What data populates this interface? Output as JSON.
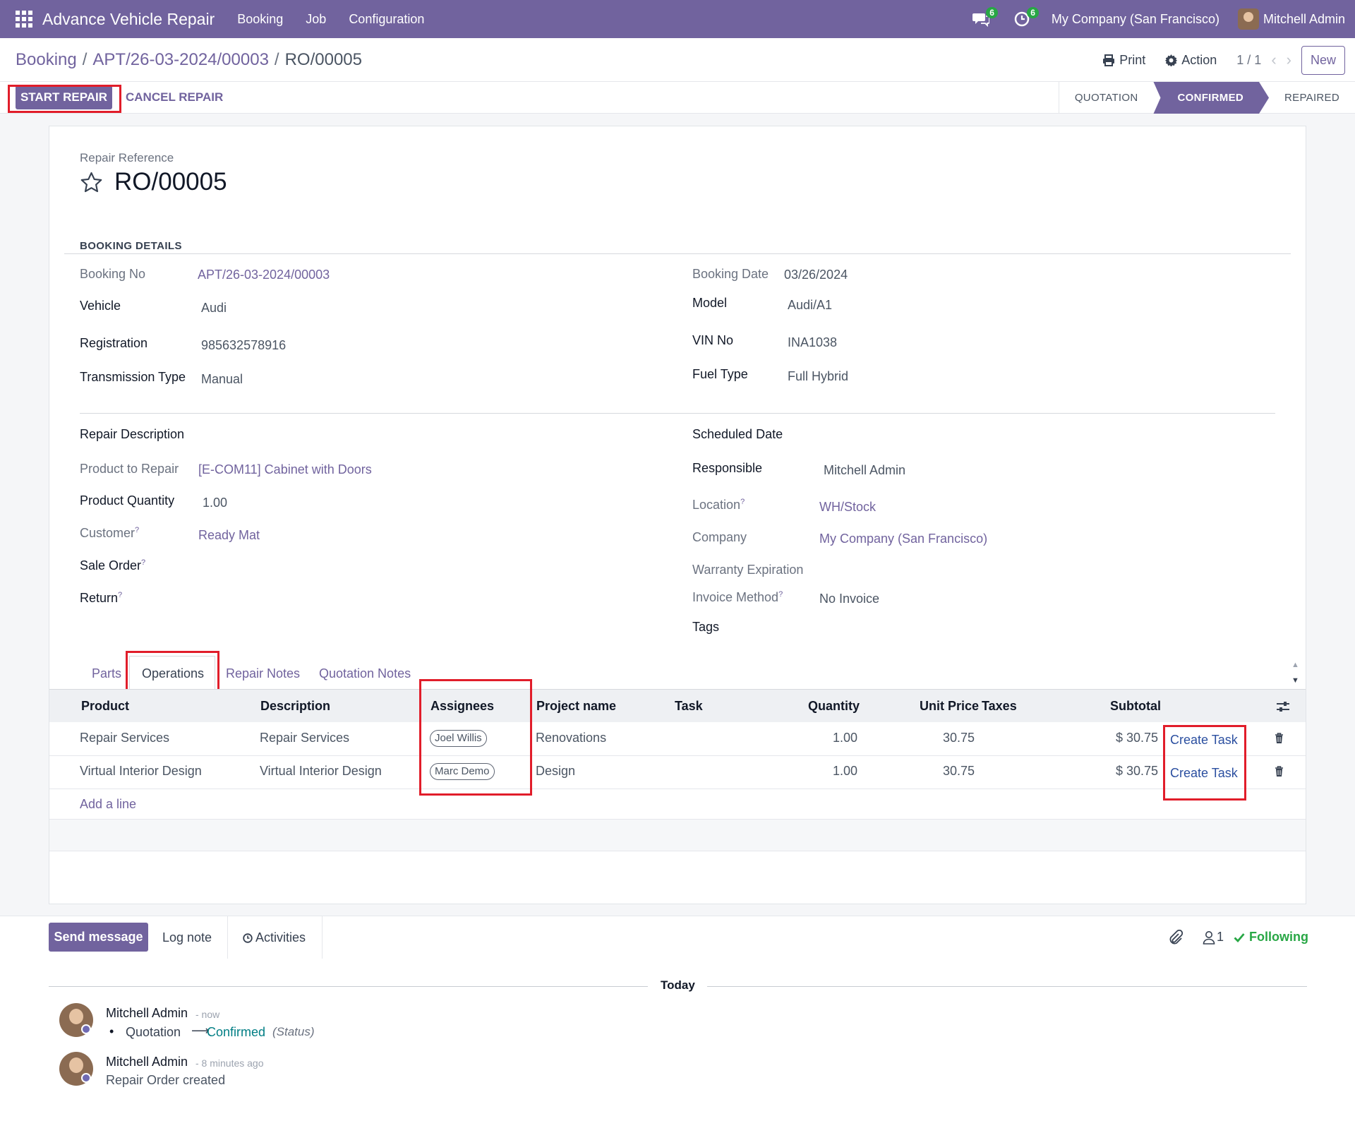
{
  "navbar": {
    "app_title": "Advance Vehicle Repair",
    "menu": [
      "Booking",
      "Job",
      "Configuration"
    ],
    "messages_count": "6",
    "activities_count": "6",
    "company": "My Company (San Francisco)",
    "user": "Mitchell Admin"
  },
  "breadcrumb": {
    "root": "Booking",
    "parent": "APT/26-03-2024/00003",
    "current": "RO/00005"
  },
  "control": {
    "print": "Print",
    "action": "Action",
    "pager": "1 / 1",
    "new": "New"
  },
  "statusbar": {
    "start_repair": "START REPAIR",
    "cancel_repair": "CANCEL REPAIR",
    "stages": [
      "QUOTATION",
      "CONFIRMED",
      "REPAIRED"
    ],
    "active_stage": "CONFIRMED"
  },
  "form": {
    "ref_label": "Repair Reference",
    "ref": "RO/00005",
    "section_booking": "BOOKING DETAILS",
    "booking_no_label": "Booking No",
    "booking_no": "APT/26-03-2024/00003",
    "vehicle_label": "Vehicle",
    "vehicle": "Audi",
    "registration_label": "Registration",
    "registration": "985632578916",
    "transmission_label": "Transmission Type",
    "transmission": "Manual",
    "booking_date_label": "Booking Date",
    "booking_date": "03/26/2024",
    "model_label": "Model",
    "model": "Audi/A1",
    "vin_label": "VIN No",
    "vin": "INA1038",
    "fuel_label": "Fuel Type",
    "fuel": "Full Hybrid",
    "repair_desc_label": "Repair Description",
    "product_label": "Product to Repair",
    "product": "[E-COM11] Cabinet with Doors",
    "qty_label": "Product Quantity",
    "qty": "1.00",
    "customer_label": "Customer",
    "customer": "Ready Mat",
    "sale_order_label": "Sale Order",
    "return_label": "Return",
    "scheduled_label": "Scheduled Date",
    "responsible_label": "Responsible",
    "responsible": "Mitchell Admin",
    "location_label": "Location",
    "location": "WH/Stock",
    "company_label": "Company",
    "company": "My Company (San Francisco)",
    "warranty_label": "Warranty Expiration",
    "invoice_label": "Invoice Method",
    "invoice": "No Invoice",
    "tags_label": "Tags",
    "help_mark": "?"
  },
  "tabs": [
    "Parts",
    "Operations",
    "Repair Notes",
    "Quotation Notes"
  ],
  "active_tab": "Operations",
  "table": {
    "headers": [
      "Product",
      "Description",
      "Assignees",
      "Project name",
      "Task",
      "Quantity",
      "Unit Price",
      "Taxes",
      "Subtotal"
    ],
    "rows": [
      {
        "product": "Repair Services",
        "description": "Repair Services",
        "assignee": "Joel Willis",
        "project": "Renovations",
        "task": "",
        "quantity": "1.00",
        "unit_price": "30.75",
        "taxes": "",
        "subtotal": "$ 30.75",
        "action": "Create Task"
      },
      {
        "product": "Virtual Interior Design",
        "description": "Virtual Interior Design",
        "assignee": "Marc Demo",
        "project": "Design",
        "task": "",
        "quantity": "1.00",
        "unit_price": "30.75",
        "taxes": "",
        "subtotal": "$ 30.75",
        "action": "Create Task"
      }
    ],
    "add_line": "Add a line"
  },
  "chatter": {
    "send_message": "Send message",
    "log_note": "Log note",
    "activities": "Activities",
    "followers_count": "1",
    "following": "Following",
    "today": "Today",
    "messages": [
      {
        "author": "Mitchell Admin",
        "time": "- now",
        "old": "Quotation",
        "new": "Confirmed",
        "field": "(Status)"
      },
      {
        "author": "Mitchell Admin",
        "time": "- 8 minutes ago",
        "body": "Repair Order created"
      }
    ]
  },
  "colors": {
    "primary": "#71639e",
    "highlight": "#e11d2a",
    "following": "#28a745",
    "link_teal": "#017e84"
  }
}
